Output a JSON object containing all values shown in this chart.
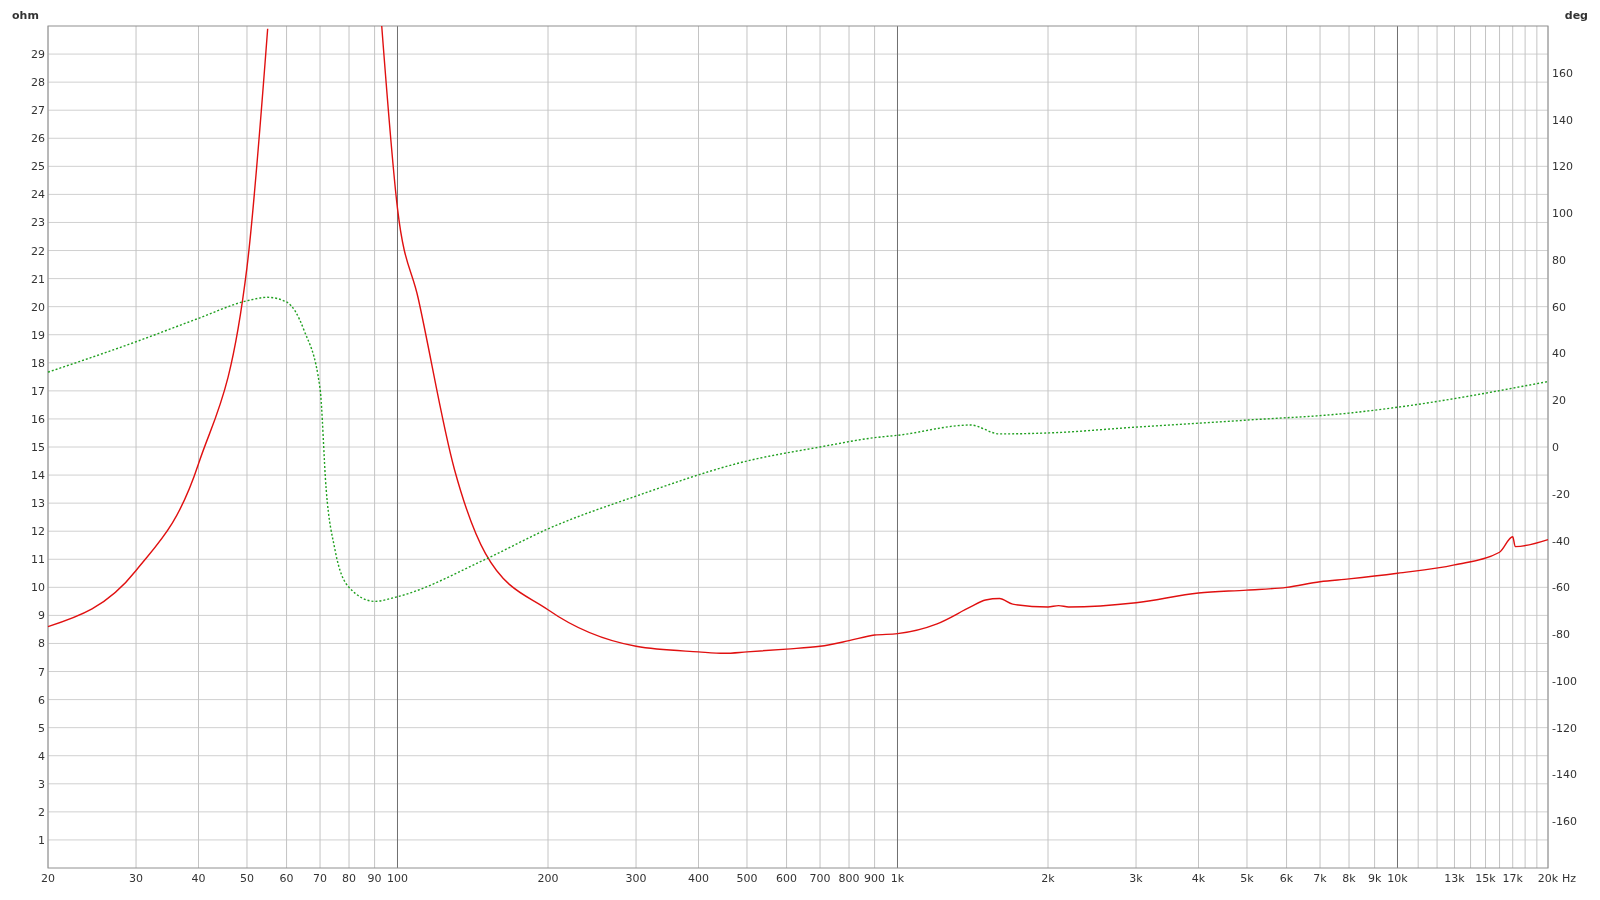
{
  "chart_data": {
    "type": "line",
    "ylabel": "ohm",
    "y2label": "deg",
    "log": "x",
    "grid": true,
    "xlabel": "Hz",
    "xlim": [
      20,
      20000
    ],
    "ylim": [
      0,
      30
    ],
    "y2lim": [
      -180,
      180
    ],
    "xticks": [
      20,
      30,
      40,
      50,
      60,
      70,
      80,
      90,
      100,
      200,
      300,
      400,
      500,
      600,
      700,
      800,
      900,
      {
        "value": 1000,
        "label": "1k"
      },
      {
        "value": 2000,
        "label": "2k"
      },
      {
        "value": 3000,
        "label": "3k"
      },
      {
        "value": 4000,
        "label": "4k"
      },
      {
        "value": 5000,
        "label": "5k"
      },
      {
        "value": 6000,
        "label": "6k"
      },
      {
        "value": 7000,
        "label": "7k"
      },
      {
        "value": 8000,
        "label": "8k"
      },
      {
        "value": 9000,
        "label": "9k"
      },
      {
        "value": 10000,
        "label": "10k"
      },
      {
        "value": 11000,
        "label": null
      },
      {
        "value": 12000,
        "label": null
      },
      {
        "value": 13000,
        "label": "13k"
      },
      {
        "value": 14000,
        "label": null
      },
      {
        "value": 15000,
        "label": "15k"
      },
      {
        "value": 16000,
        "label": null
      },
      {
        "value": 17000,
        "label": "17k"
      },
      {
        "value": 18000,
        "label": null
      },
      {
        "value": 19000,
        "label": null
      },
      {
        "value": 20000,
        "label": "20k"
      }
    ],
    "yticks": [
      1,
      2,
      3,
      4,
      5,
      6,
      7,
      8,
      9,
      10,
      11,
      12,
      13,
      14,
      15,
      16,
      17,
      18,
      19,
      20,
      21,
      22,
      23,
      24,
      25,
      26,
      27,
      28,
      29
    ],
    "y2ticks": [
      -160,
      -140,
      -120,
      -100,
      -80,
      -60,
      -40,
      -20,
      0,
      20,
      40,
      60,
      80,
      100,
      120,
      140,
      160
    ],
    "series": [
      {
        "color": "#e01010",
        "line_style": "solid",
        "x": [
          20,
          30,
          40,
          50,
          55,
          74,
          93,
          100,
          110,
          130,
          150,
          200,
          300,
          400,
          450,
          500,
          600,
          700,
          800,
          900,
          1000,
          1200,
          1400,
          1500,
          1600,
          1700,
          2000,
          2100,
          2200,
          3000,
          4000,
          5000,
          6000,
          7000,
          8000,
          10000,
          13000,
          16000,
          17000,
          17200,
          20000
        ],
        "values": [
          8.6,
          10.6,
          14.4,
          21.4,
          29.9,
          null,
          30,
          23.5,
          20.3,
          14.2,
          11.2,
          9.2,
          7.9,
          7.7,
          7.65,
          7.7,
          7.8,
          7.9,
          8.1,
          8.3,
          8.35,
          8.7,
          9.3,
          9.55,
          9.6,
          9.4,
          9.3,
          9.35,
          9.3,
          9.45,
          9.8,
          9.9,
          10.0,
          10.2,
          10.3,
          10.5,
          10.8,
          11.25,
          11.8,
          11.45,
          11.7
        ]
      },
      {
        "color": "#20a020",
        "axis": "y2",
        "line_style": "dotted",
        "x": [
          20,
          30,
          40,
          50,
          55,
          60,
          65,
          70,
          72,
          75,
          80,
          90,
          100,
          150,
          200,
          300,
          500,
          700,
          900,
          1000,
          1400,
          1600,
          2000,
          3000,
          5000,
          8000,
          10000,
          20000
        ],
        "values": [
          32,
          45,
          55,
          62.5,
          64,
          62,
          50,
          25,
          -18,
          -44,
          -60,
          -66,
          -64,
          -48,
          -35,
          -21,
          -6,
          0,
          4,
          5,
          9.4,
          5.6,
          6,
          8.5,
          11.5,
          14.5,
          17,
          28
        ]
      }
    ]
  }
}
